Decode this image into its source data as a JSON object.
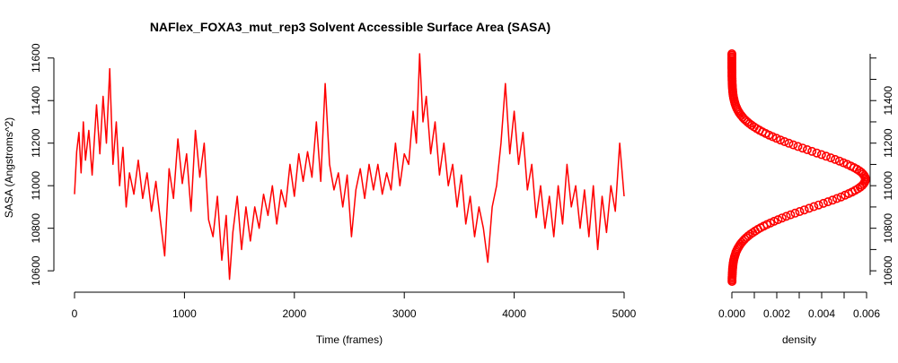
{
  "chart_data": [
    {
      "type": "line",
      "title": "NAFlex_FOXA3_mut_rep3 Solvent Accessible Surface Area (SASA)",
      "xlabel": "Time (frames)",
      "ylabel": "SASA (Angstroms^2)",
      "xlim": [
        0,
        5000
      ],
      "ylim": [
        10550,
        11620
      ],
      "x_ticks": [
        0,
        1000,
        2000,
        3000,
        4000,
        5000
      ],
      "y_ticks": [
        10600,
        10800,
        11000,
        11200,
        11400,
        11600
      ],
      "color": "#ff0000",
      "series": [
        {
          "points": [
            [
              0,
              10960
            ],
            [
              20,
              11160
            ],
            [
              40,
              11250
            ],
            [
              60,
              11060
            ],
            [
              80,
              11300
            ],
            [
              100,
              11120
            ],
            [
              130,
              11260
            ],
            [
              160,
              11050
            ],
            [
              200,
              11380
            ],
            [
              230,
              11150
            ],
            [
              260,
              11420
            ],
            [
              290,
              11200
            ],
            [
              320,
              11550
            ],
            [
              350,
              11100
            ],
            [
              380,
              11300
            ],
            [
              410,
              11000
            ],
            [
              440,
              11180
            ],
            [
              470,
              10900
            ],
            [
              500,
              11060
            ],
            [
              540,
              10960
            ],
            [
              580,
              11120
            ],
            [
              620,
              10940
            ],
            [
              660,
              11060
            ],
            [
              700,
              10880
            ],
            [
              740,
              11020
            ],
            [
              780,
              10840
            ],
            [
              820,
              10670
            ],
            [
              860,
              11080
            ],
            [
              900,
              10940
            ],
            [
              940,
              11220
            ],
            [
              980,
              11010
            ],
            [
              1020,
              11150
            ],
            [
              1060,
              10880
            ],
            [
              1100,
              11260
            ],
            [
              1140,
              11040
            ],
            [
              1180,
              11200
            ],
            [
              1220,
              10840
            ],
            [
              1260,
              10760
            ],
            [
              1300,
              10950
            ],
            [
              1340,
              10650
            ],
            [
              1380,
              10860
            ],
            [
              1410,
              10560
            ],
            [
              1440,
              10780
            ],
            [
              1480,
              10950
            ],
            [
              1520,
              10700
            ],
            [
              1560,
              10900
            ],
            [
              1600,
              10740
            ],
            [
              1640,
              10900
            ],
            [
              1680,
              10800
            ],
            [
              1720,
              10960
            ],
            [
              1760,
              10860
            ],
            [
              1800,
              11000
            ],
            [
              1840,
              10820
            ],
            [
              1880,
              10980
            ],
            [
              1920,
              10900
            ],
            [
              1960,
              11100
            ],
            [
              2000,
              10950
            ],
            [
              2040,
              11150
            ],
            [
              2080,
              11020
            ],
            [
              2120,
              11160
            ],
            [
              2160,
              11040
            ],
            [
              2200,
              11300
            ],
            [
              2240,
              11020
            ],
            [
              2280,
              11480
            ],
            [
              2320,
              11100
            ],
            [
              2360,
              10980
            ],
            [
              2400,
              11060
            ],
            [
              2440,
              10900
            ],
            [
              2480,
              11050
            ],
            [
              2520,
              10760
            ],
            [
              2560,
              10980
            ],
            [
              2600,
              11080
            ],
            [
              2640,
              10940
            ],
            [
              2680,
              11100
            ],
            [
              2720,
              10980
            ],
            [
              2760,
              11100
            ],
            [
              2800,
              10960
            ],
            [
              2840,
              11060
            ],
            [
              2880,
              10980
            ],
            [
              2920,
              11200
            ],
            [
              2960,
              11000
            ],
            [
              3000,
              11150
            ],
            [
              3040,
              11100
            ],
            [
              3080,
              11350
            ],
            [
              3110,
              11200
            ],
            [
              3140,
              11620
            ],
            [
              3170,
              11300
            ],
            [
              3200,
              11420
            ],
            [
              3240,
              11150
            ],
            [
              3280,
              11300
            ],
            [
              3320,
              11050
            ],
            [
              3360,
              11200
            ],
            [
              3400,
              11000
            ],
            [
              3440,
              11100
            ],
            [
              3480,
              10900
            ],
            [
              3520,
              11050
            ],
            [
              3560,
              10820
            ],
            [
              3600,
              10950
            ],
            [
              3640,
              10760
            ],
            [
              3680,
              10900
            ],
            [
              3720,
              10800
            ],
            [
              3760,
              10640
            ],
            [
              3800,
              10900
            ],
            [
              3840,
              11000
            ],
            [
              3880,
              11200
            ],
            [
              3920,
              11480
            ],
            [
              3960,
              11150
            ],
            [
              4000,
              11350
            ],
            [
              4040,
              11100
            ],
            [
              4080,
              11250
            ],
            [
              4120,
              10980
            ],
            [
              4160,
              11100
            ],
            [
              4200,
              10850
            ],
            [
              4240,
              11000
            ],
            [
              4280,
              10800
            ],
            [
              4320,
              10950
            ],
            [
              4360,
              10760
            ],
            [
              4400,
              11000
            ],
            [
              4440,
              10820
            ],
            [
              4480,
              11100
            ],
            [
              4520,
              10900
            ],
            [
              4560,
              11000
            ],
            [
              4600,
              10800
            ],
            [
              4640,
              10980
            ],
            [
              4680,
              10760
            ],
            [
              4720,
              11000
            ],
            [
              4760,
              10700
            ],
            [
              4800,
              10950
            ],
            [
              4840,
              10780
            ],
            [
              4880,
              11000
            ],
            [
              4920,
              10880
            ],
            [
              4960,
              11200
            ],
            [
              5000,
              10950
            ]
          ]
        }
      ]
    },
    {
      "type": "line",
      "xlabel": "density",
      "xlim": [
        0,
        0.006
      ],
      "ylim": [
        10550,
        11620
      ],
      "x_ticks": [
        0.0,
        0.002,
        0.004,
        0.006
      ],
      "x_tick_labels": [
        "0.000",
        "0.002",
        "0.004",
        "0.006"
      ],
      "y_ticks": [
        10600,
        10800,
        11000,
        11200,
        11400
      ],
      "color": "#ff0000",
      "density_curve": {
        "mean": 11030,
        "sd": 130,
        "peak": 0.00595,
        "y_range": [
          10550,
          11620
        ]
      }
    }
  ]
}
